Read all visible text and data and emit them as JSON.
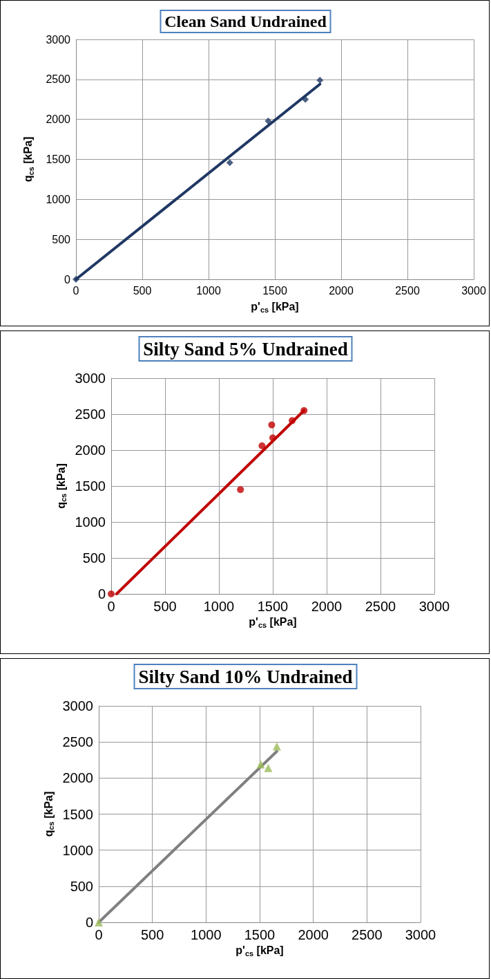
{
  "chart_data": [
    {
      "type": "scatter",
      "title": "Clean Sand Undrained",
      "xlabel": "p'$_{cs}$ [kPa]",
      "ylabel": "q$_{cs}$ [kPa]",
      "xlim": [
        0,
        3000
      ],
      "xticks": [
        0,
        500,
        1000,
        1500,
        2000,
        2500,
        3000
      ],
      "ylim": [
        0,
        3000
      ],
      "yticks": [
        0,
        500,
        1000,
        1500,
        2000,
        2500,
        3000
      ],
      "grid": true,
      "series": [
        {
          "color": "#1f3864",
          "marker": "diamond",
          "x": [
            0,
            1160,
            1450,
            1730,
            1840
          ],
          "values": [
            0,
            1460,
            1980,
            2250,
            2490
          ]
        },
        {
          "type": "line",
          "color": "#1f3864",
          "marker": "none",
          "line_style": "solid",
          "x": [
            0,
            1840
          ],
          "values": [
            0,
            2440
          ]
        }
      ]
    },
    {
      "type": "scatter",
      "title": "Silty Sand 5% Undrained",
      "xlabel": "p'$_{cs}$ [kPa]",
      "ylabel": "q$_{cs}$ [kPa]",
      "xlim": [
        0,
        3000
      ],
      "xticks": [
        0,
        500,
        1000,
        1500,
        2000,
        2500,
        3000
      ],
      "ylim": [
        0,
        3000
      ],
      "yticks": [
        0,
        500,
        1000,
        1500,
        2000,
        2500,
        3000
      ],
      "grid": true,
      "series": [
        {
          "color": "#c00000",
          "marker": "circle",
          "x": [
            0,
            1200,
            1400,
            1490,
            1500,
            1680,
            1790
          ],
          "values": [
            0,
            1450,
            2060,
            2350,
            2170,
            2410,
            2550
          ]
        },
        {
          "type": "line",
          "color": "#c00000",
          "marker": "none",
          "line_style": "solid",
          "x": [
            50,
            1790
          ],
          "values": [
            0,
            2550
          ]
        }
      ]
    },
    {
      "type": "scatter",
      "title": "Silty Sand 10% Undrained",
      "xlabel": "p'$_{cs}$ [kPa]",
      "ylabel": "q$_{cs}$ [kPa]",
      "xlim": [
        0,
        3000
      ],
      "xticks": [
        0,
        500,
        1000,
        1500,
        2000,
        2500,
        3000
      ],
      "ylim": [
        0,
        3000
      ],
      "yticks": [
        0,
        500,
        1000,
        1500,
        2000,
        2500,
        3000
      ],
      "grid": true,
      "series": [
        {
          "color": "#9bbb59",
          "marker": "triangle",
          "x": [
            0,
            1510,
            1580,
            1660
          ],
          "values": [
            0,
            2190,
            2140,
            2440
          ]
        },
        {
          "type": "line",
          "color": "#808080",
          "marker": "none",
          "line_style": "solid",
          "x": [
            0,
            1660
          ],
          "values": [
            0,
            2370
          ]
        }
      ]
    }
  ]
}
